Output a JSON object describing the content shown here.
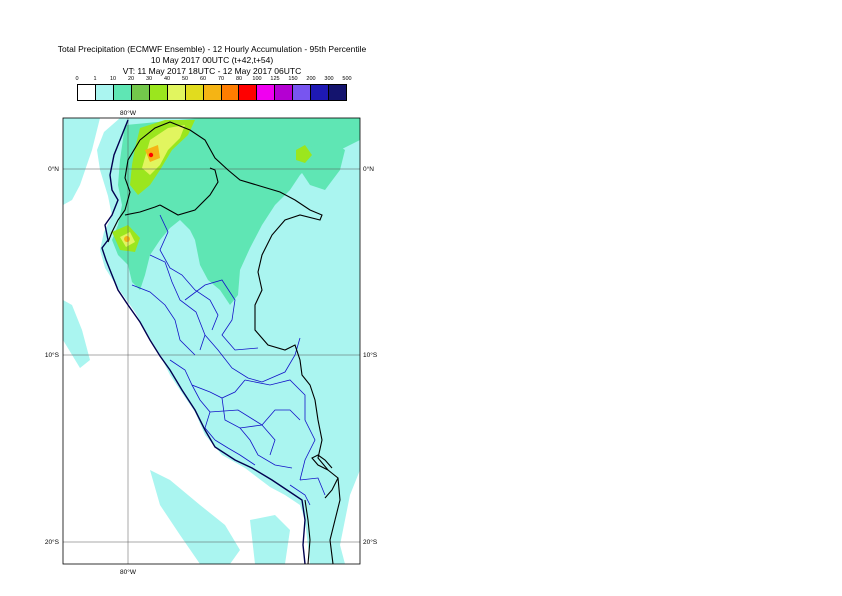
{
  "title": {
    "line1": "Total Precipitation (ECMWF Ensemble) - 12 Hourly Accumulation - 95th Percentile",
    "line2": "10 May 2017 00UTC (t+42,t+54)",
    "line3": "VT: 11 May 2017 18UTC - 12 May 2017 06UTC"
  },
  "legend": {
    "ticks": [
      "0",
      "1",
      "10",
      "20",
      "30",
      "40",
      "50",
      "60",
      "70",
      "80",
      "100",
      "125",
      "150",
      "200",
      "300",
      "500"
    ],
    "colors": [
      "#ffffff",
      "#aaf5f0",
      "#5fe6b4",
      "#73c84b",
      "#9be61e",
      "#e1f55f",
      "#e1dc1e",
      "#f5b414",
      "#ff7d00",
      "#ff0000",
      "#f000f0",
      "#b400d2",
      "#7855f0",
      "#1e19b4",
      "#14146e"
    ]
  },
  "axes": {
    "lon_top": "80°W",
    "lon_bottom": "80°W",
    "lat_labels": [
      {
        "left": "0°N",
        "right": "0°N"
      },
      {
        "left": "10°S",
        "right": "10°S"
      },
      {
        "left": "20°S",
        "right": "20°S"
      }
    ]
  },
  "map": {
    "ocean_color": "#ffffff",
    "light_color": "#aaf5f0",
    "medium_color": "#5fe6b4",
    "green_color": "#9be61e",
    "yellow_color": "#e1f55f",
    "orange_color": "#f5b414",
    "red_color": "#ff0000",
    "border_color": "#000000",
    "admin_color": "#1414c8",
    "coast_color": "#000050"
  }
}
